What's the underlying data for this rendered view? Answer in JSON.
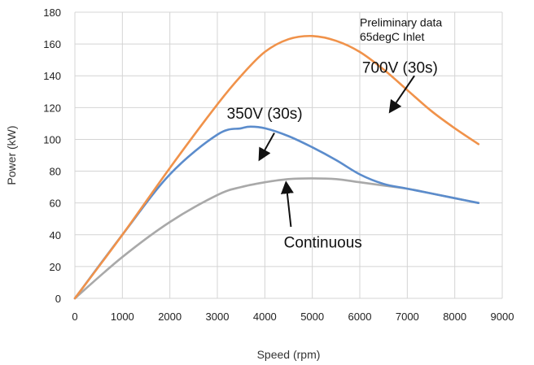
{
  "chart_data": {
    "type": "line",
    "title": "",
    "xlabel": "Speed (rpm)",
    "ylabel": "Power (kW)",
    "xlim": [
      0,
      9000
    ],
    "ylim": [
      0,
      180
    ],
    "xticks": [
      0,
      1000,
      2000,
      3000,
      4000,
      5000,
      6000,
      7000,
      8000,
      9000
    ],
    "yticks": [
      0,
      20,
      40,
      60,
      80,
      100,
      120,
      140,
      160,
      180
    ],
    "grid": true,
    "legend": "none",
    "colors": {
      "orange": "#f0924a",
      "blue": "#5b8ccc",
      "gray": "#a9a9a9",
      "grid": "#d4d4d4"
    },
    "series": [
      {
        "key": "700v",
        "color": "#f0924a",
        "x": [
          0,
          1000,
          2000,
          3000,
          3500,
          4000,
          4500,
          5000,
          5500,
          6000,
          6500,
          7000,
          7500,
          8000,
          8500
        ],
        "y": [
          0,
          40,
          82,
          122,
          140,
          155,
          163,
          165,
          162,
          155,
          144,
          131,
          118,
          107,
          97
        ]
      },
      {
        "key": "350v",
        "color": "#5b8ccc",
        "x": [
          0,
          1000,
          2000,
          3000,
          3500,
          3700,
          4000,
          4500,
          5000,
          5500,
          6000,
          6500,
          7000,
          7500,
          8000,
          8500
        ],
        "y": [
          0,
          40,
          78,
          103,
          107,
          108,
          107,
          102,
          95,
          87,
          78,
          72,
          69,
          66,
          63,
          60
        ]
      },
      {
        "key": "continuous",
        "color": "#a9a9a9",
        "x": [
          0,
          1000,
          2000,
          3000,
          3500,
          4000,
          4500,
          5000,
          5500,
          6000,
          6500,
          7000,
          7500,
          8000,
          8500
        ],
        "y": [
          0,
          26,
          48,
          65,
          70,
          73,
          75,
          75.5,
          75,
          73,
          71,
          69,
          66,
          63,
          60
        ]
      }
    ],
    "annotations": [
      {
        "key": "prelim",
        "text": "Preliminary data",
        "x": 6000,
        "y": 171
      },
      {
        "key": "inlet",
        "text": "65degC Inlet",
        "x": 6000,
        "y": 162
      },
      {
        "key": "700v",
        "text": "700V (30s)",
        "x": 6050,
        "y": 142
      },
      {
        "key": "350v",
        "text": "350V (30s)",
        "x": 3200,
        "y": 113
      },
      {
        "key": "continuous",
        "text": "Continuous",
        "x": 4400,
        "y": 32
      }
    ],
    "arrows": [
      {
        "key": "700v",
        "from": [
          7150,
          140
        ],
        "to": [
          6650,
          118
        ]
      },
      {
        "key": "350v",
        "from": [
          4200,
          104
        ],
        "to": [
          3900,
          88
        ]
      },
      {
        "key": "continuous",
        "from": [
          4550,
          45
        ],
        "to": [
          4450,
          72
        ]
      }
    ]
  }
}
